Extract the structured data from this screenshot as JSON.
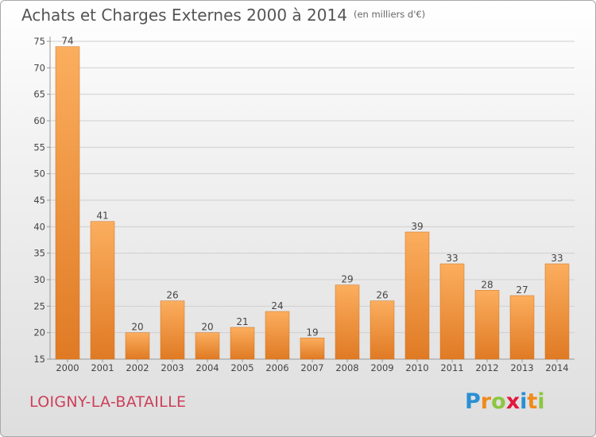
{
  "header": {
    "title": "Achats et Charges Externes 2000 à 2014",
    "unit": "(en milliers d'€)"
  },
  "footer": {
    "commune": "LOIGNY-LA-BATAILLE",
    "logo_letters": [
      "P",
      "r",
      "o",
      "x",
      "i",
      "t",
      "i"
    ],
    "logo_colors": [
      "#2a8fd4",
      "#f08a1c",
      "#8cc63f",
      "#e2173f",
      "#2a8fd4",
      "#f08a1c",
      "#8cc63f"
    ]
  },
  "colors": {
    "bar_light": "#fbae5e",
    "bar_dark": "#e07a24",
    "grid": "#cfcfcf",
    "axis": "#999999",
    "text": "#444444",
    "commune": "#cc3f5a"
  },
  "chart_data": {
    "type": "bar",
    "title": "Achats et Charges Externes 2000 à 2014",
    "categories": [
      "2000",
      "2001",
      "2002",
      "2003",
      "2004",
      "2005",
      "2006",
      "2007",
      "2008",
      "2009",
      "2010",
      "2011",
      "2012",
      "2013",
      "2014"
    ],
    "values": [
      74,
      41,
      20,
      26,
      20,
      21,
      24,
      19,
      29,
      26,
      39,
      33,
      28,
      27,
      33
    ],
    "xlabel": "",
    "ylabel": "",
    "ylim": [
      15,
      75
    ],
    "yticks": [
      15,
      20,
      25,
      30,
      35,
      40,
      45,
      50,
      55,
      60,
      65,
      70,
      75
    ],
    "grid": true,
    "legend": "none"
  }
}
